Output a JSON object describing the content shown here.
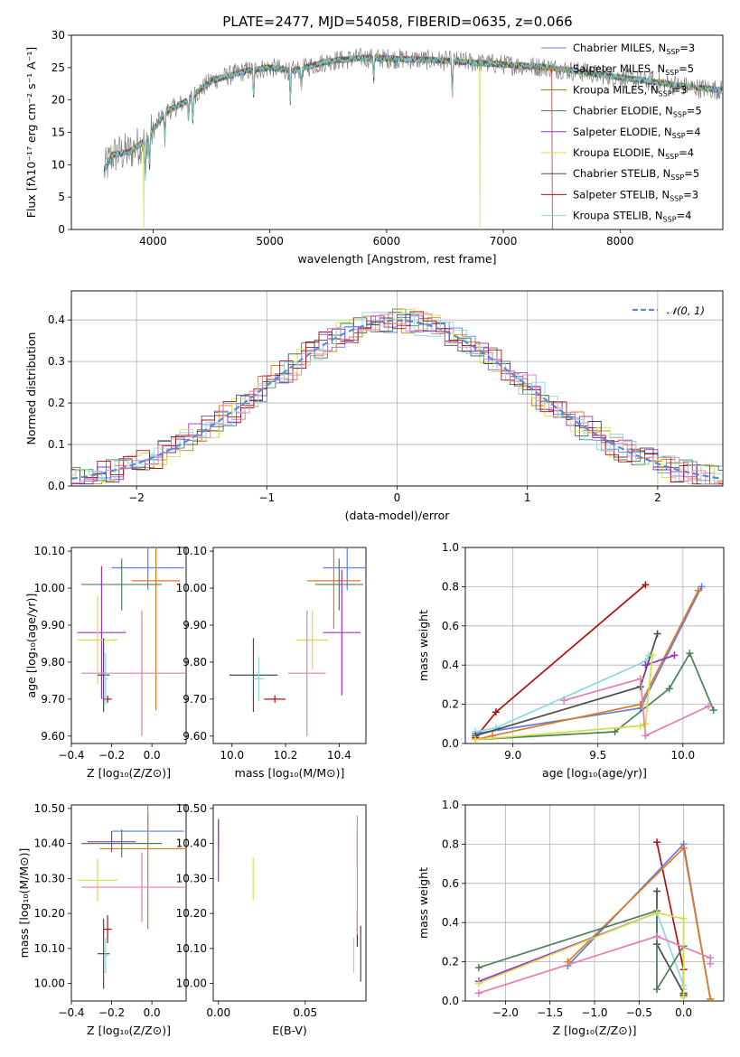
{
  "figure": {
    "title": "PLATE=2477, MJD=54058, FIBERID=0635, z=0.066"
  },
  "legend_series": [
    {
      "name": "Chabrier MILES, N_SSP=3",
      "base": "Chabrier MILES, N",
      "sub": "SSP",
      "rest": "=3",
      "color": "#5c7ee6"
    },
    {
      "name": "Salpeter MILES, N_SSP=5",
      "base": "Salpeter MILES, N",
      "sub": "SSP",
      "rest": "=5",
      "color": "#e07a1f"
    },
    {
      "name": "Kroupa MILES, N_SSP=3",
      "base": "Kroupa MILES, N",
      "sub": "SSP",
      "rest": "=3",
      "color": "#808000"
    },
    {
      "name": "Chabrier ELODIE, N_SSP=5",
      "base": "Chabrier ELODIE, N",
      "sub": "SSP",
      "rest": "=5",
      "color": "#4d8057"
    },
    {
      "name": "Salpeter ELODIE, N_SSP=4",
      "base": "Salpeter ELODIE, N",
      "sub": "SSP",
      "rest": "=4",
      "color": "#9b30c8"
    },
    {
      "name": "Kroupa ELODIE, N_SSP=4",
      "base": "Kroupa ELODIE, N",
      "sub": "SSP",
      "rest": "=4",
      "color": "#cfe04a"
    },
    {
      "name": "Chabrier STELIB, N_SSP=5",
      "base": "Chabrier STELIB, N",
      "sub": "SSP",
      "rest": "=5",
      "color": "#4a4a4a"
    },
    {
      "name": "Salpeter STELIB, N_SSP=3",
      "base": "Salpeter STELIB, N",
      "sub": "SSP",
      "rest": "=3",
      "color": "#b01010"
    },
    {
      "name": "Kroupa STELIB, N_SSP=4",
      "base": "Kroupa STELIB, N",
      "sub": "SSP",
      "rest": "=4",
      "color": "#8ad8e6"
    }
  ],
  "extra_colors": {
    "pink": "#e37fb4",
    "cyan_dark": "#5fc9d8"
  },
  "chart_data": [
    {
      "id": "spectrum",
      "type": "line",
      "title": "PLATE=2477, MJD=54058, FIBERID=0635, z=0.066",
      "xlabel": "wavelength [Angstrom, rest frame]",
      "ylabel": "Flux [fλ10⁻¹⁷ erg cm⁻² s⁻¹ A⁻¹]",
      "xlim": [
        3300,
        8880
      ],
      "ylim": [
        0,
        30
      ],
      "xticks": [
        4000,
        5000,
        6000,
        7000,
        8000
      ],
      "yticks": [
        0,
        5,
        10,
        15,
        20,
        25,
        30
      ],
      "continuum_knots": [
        [
          3580,
          9
        ],
        [
          3650,
          11.5
        ],
        [
          3800,
          12
        ],
        [
          3950,
          14
        ],
        [
          4100,
          18
        ],
        [
          4300,
          20
        ],
        [
          4500,
          23
        ],
        [
          4800,
          24.5
        ],
        [
          5000,
          25
        ],
        [
          5200,
          24.5
        ],
        [
          5500,
          26
        ],
        [
          5800,
          26.5
        ],
        [
          6200,
          26.3
        ],
        [
          6563,
          26
        ],
        [
          7000,
          25.5
        ],
        [
          7400,
          25
        ],
        [
          7800,
          24
        ],
        [
          8200,
          23
        ],
        [
          8600,
          22
        ],
        [
          8880,
          21.5
        ]
      ],
      "absorption_lines": [
        [
          3934,
          6
        ],
        [
          3969,
          5
        ],
        [
          4101,
          4
        ],
        [
          4304,
          3
        ],
        [
          4340,
          4
        ],
        [
          4861,
          4
        ],
        [
          5175,
          5
        ],
        [
          5270,
          3
        ],
        [
          5890,
          3
        ],
        [
          6563,
          5
        ]
      ],
      "dropouts": [
        {
          "series": "Kroupa ELODIE, N_SSP=4",
          "x": 3920
        },
        {
          "series": "Kroupa ELODIE, N_SSP=4",
          "x": 6800
        },
        {
          "series": "Salpeter STELIB, N_SSP=3",
          "x": 7420
        }
      ]
    },
    {
      "id": "residuals",
      "type": "histogram",
      "xlabel": "(data-model)/error",
      "ylabel": "Normed distribution",
      "xlim": [
        -2.5,
        2.5
      ],
      "ylim": [
        0,
        0.47
      ],
      "xticks": [
        -2,
        -1,
        0,
        1,
        2
      ],
      "yticks": [
        0,
        0.1,
        0.2,
        0.3,
        0.4
      ],
      "bin_width": 0.1,
      "gaussian_label": "𝒩(0, 1)",
      "gaussian_color": "#5c8ad6",
      "grid": true,
      "legend_position": "top-right"
    },
    {
      "id": "age_vs_Z",
      "type": "scatter",
      "xlabel": "Z [log₁₀(Z/Z⊙)]",
      "ylabel": "age  [log₁₀(age/yr)]",
      "xlim": [
        -0.4,
        0.17
      ],
      "ylim": [
        9.58,
        10.11
      ],
      "xticks": [
        -0.4,
        -0.2,
        0.0
      ],
      "yticks": [
        9.6,
        9.7,
        9.8,
        9.9,
        10.0,
        10.1
      ],
      "points": [
        {
          "series": "Chabrier MILES, N_SSP=3",
          "x": -0.02,
          "y": 10.055,
          "xerr": 0.18,
          "yerr": 0.06
        },
        {
          "series": "Salpeter MILES, N_SSP=5",
          "x": 0.02,
          "y": 10.02,
          "xerr": 0.12,
          "yerr": 0.35
        },
        {
          "series": "Chabrier ELODIE, N_SSP=5",
          "x": -0.15,
          "y": 10.01,
          "xerr": 0.2,
          "yerr": 0.07
        },
        {
          "series": "Salpeter ELODIE, N_SSP=4",
          "x": -0.25,
          "y": 9.88,
          "xerr": 0.12,
          "yerr": 0.18
        },
        {
          "series": "Kroupa ELODIE, N_SSP=4",
          "x": -0.27,
          "y": 9.86,
          "xerr": 0.1,
          "yerr": 0.12
        },
        {
          "series": "Chabrier STELIB, N_SSP=5",
          "x": -0.24,
          "y": 9.765,
          "xerr": 0.03,
          "yerr": 0.1
        },
        {
          "series": "Salpeter STELIB, N_SSP=3",
          "x": -0.22,
          "y": 9.7,
          "xerr": 0.02,
          "yerr": 0.01
        },
        {
          "series": "Kroupa STELIB, N_SSP=4",
          "x": -0.23,
          "y": 9.755,
          "xerr": 0.01,
          "yerr": 0.07
        },
        {
          "series": "pink",
          "x": -0.05,
          "y": 9.77,
          "xerr": 0.3,
          "yerr": 0.17
        }
      ]
    },
    {
      "id": "age_vs_mass",
      "type": "scatter",
      "xlabel": "mass [log₁₀(M/M⊙)]",
      "ylabel": "",
      "xlim": [
        9.93,
        10.5
      ],
      "ylim": [
        9.58,
        10.11
      ],
      "xticks": [
        10.0,
        10.2,
        10.4
      ],
      "yticks": [
        9.6,
        9.7,
        9.8,
        9.9,
        10.0,
        10.1
      ],
      "points": [
        {
          "series": "Chabrier MILES, N_SSP=3",
          "x": 10.43,
          "y": 10.055,
          "xerr": 0.09,
          "yerr": 0.06
        },
        {
          "series": "Salpeter MILES, N_SSP=5",
          "x": 10.38,
          "y": 10.02,
          "xerr": 0.1,
          "yerr": 0.13
        },
        {
          "series": "Chabrier ELODIE, N_SSP=5",
          "x": 10.4,
          "y": 10.01,
          "xerr": 0.09,
          "yerr": 0.07
        },
        {
          "series": "Salpeter ELODIE, N_SSP=4",
          "x": 10.41,
          "y": 9.88,
          "xerr": 0.07,
          "yerr": 0.17
        },
        {
          "series": "Kroupa ELODIE, N_SSP=4",
          "x": 10.3,
          "y": 9.86,
          "xerr": 0.06,
          "yerr": 0.08
        },
        {
          "series": "Chabrier STELIB, N_SSP=5",
          "x": 10.08,
          "y": 9.765,
          "xerr": 0.09,
          "yerr": 0.1
        },
        {
          "series": "Salpeter STELIB, N_SSP=3",
          "x": 10.16,
          "y": 9.7,
          "xerr": 0.04,
          "yerr": 0.01
        },
        {
          "series": "Kroupa STELIB, N_SSP=4",
          "x": 10.1,
          "y": 9.755,
          "xerr": 0.02,
          "yerr": 0.06
        },
        {
          "series": "pink",
          "x": 10.28,
          "y": 9.77,
          "xerr": 0.07,
          "yerr": 0.17
        }
      ]
    },
    {
      "id": "weight_vs_age",
      "type": "line",
      "xlabel": "age  [log₁₀(age/yr)]",
      "ylabel": "mass weight",
      "xlim": [
        8.72,
        10.24
      ],
      "ylim": [
        0,
        1
      ],
      "xticks": [
        9.0,
        9.5,
        10.0
      ],
      "yticks": [
        0.0,
        0.2,
        0.4,
        0.6,
        0.8,
        1.0
      ],
      "grid": true,
      "series": [
        {
          "series": "Salpeter STELIB, N_SSP=3",
          "x": [
            8.78,
            8.9,
            9.78
          ],
          "y": [
            0.03,
            0.16,
            0.81
          ]
        },
        {
          "series": "Chabrier MILES, N_SSP=3",
          "x": [
            8.78,
            9.75,
            10.11
          ],
          "y": [
            0.05,
            0.18,
            0.8
          ]
        },
        {
          "series": "Salpeter MILES, N_SSP=5",
          "x": [
            8.78,
            8.88,
            9.75,
            10.09
          ],
          "y": [
            0.02,
            0.04,
            0.2,
            0.78
          ]
        },
        {
          "series": "Kroupa STELIB, N_SSP=4",
          "x": [
            8.78,
            8.9,
            9.78,
            9.8
          ],
          "y": [
            0.06,
            0.08,
            0.42,
            0.45
          ]
        },
        {
          "series": "Chabrier STELIB, N_SSP=5",
          "x": [
            8.78,
            9.75,
            9.85
          ],
          "y": [
            0.04,
            0.29,
            0.56
          ]
        },
        {
          "series": "Chabrier ELODIE, N_SSP=5",
          "x": [
            8.78,
            9.6,
            9.92,
            10.04,
            10.18
          ],
          "y": [
            0.02,
            0.06,
            0.28,
            0.46,
            0.17
          ]
        },
        {
          "series": "Salpeter ELODIE, N_SSP=4",
          "x": [
            9.78,
            9.95
          ],
          "y": [
            0.4,
            0.45
          ]
        },
        {
          "series": "Kroupa ELODIE, N_SSP=4",
          "x": [
            8.78,
            9.75,
            9.78,
            9.82
          ],
          "y": [
            0.02,
            0.09,
            0.1,
            0.45
          ]
        },
        {
          "series": "pink",
          "x": [
            9.3,
            9.75,
            9.78,
            10.15
          ],
          "y": [
            0.22,
            0.33,
            0.04,
            0.19
          ]
        }
      ]
    },
    {
      "id": "mass_vs_Z",
      "type": "scatter",
      "xlabel": "Z [log₁₀(Z/Z⊙)]",
      "ylabel": "mass [log₁₀(M/M⊙)]",
      "xlim": [
        -0.4,
        0.17
      ],
      "ylim": [
        9.95,
        10.51
      ],
      "xticks": [
        -0.4,
        -0.2,
        0.0
      ],
      "yticks": [
        10.0,
        10.1,
        10.2,
        10.3,
        10.4,
        10.5
      ],
      "points": [
        {
          "series": "Chabrier MILES, N_SSP=3",
          "x": -0.02,
          "y": 10.435,
          "xerr": 0.18,
          "yerr": 0.05
        },
        {
          "series": "Salpeter MILES, N_SSP=5",
          "x": -0.02,
          "y": 10.385,
          "xerr": 0.24,
          "yerr": 0.23
        },
        {
          "series": "Chabrier ELODIE, N_SSP=5",
          "x": -0.15,
          "y": 10.4,
          "xerr": 0.2,
          "yerr": 0.04
        },
        {
          "series": "Salpeter ELODIE, N_SSP=4",
          "x": -0.2,
          "y": 10.405,
          "xerr": 0.12,
          "yerr": 0.03
        },
        {
          "series": "Kroupa ELODIE, N_SSP=4",
          "x": -0.27,
          "y": 10.295,
          "xerr": 0.1,
          "yerr": 0.06
        },
        {
          "series": "Chabrier STELIB, N_SSP=5",
          "x": -0.24,
          "y": 10.085,
          "xerr": 0.03,
          "yerr": 0.1
        },
        {
          "series": "Salpeter STELIB, N_SSP=3",
          "x": -0.22,
          "y": 10.155,
          "xerr": 0.02,
          "yerr": 0.04
        },
        {
          "series": "Kroupa STELIB, N_SSP=4",
          "x": -0.23,
          "y": 10.08,
          "xerr": 0.01,
          "yerr": 0.05
        },
        {
          "series": "pink",
          "x": -0.05,
          "y": 10.275,
          "xerr": 0.3,
          "yerr": 0.1
        }
      ]
    },
    {
      "id": "mass_vs_ebv",
      "type": "scatter",
      "xlabel": "E(B-V)",
      "ylabel": "",
      "xlim": [
        -0.003,
        0.085
      ],
      "ylim": [
        9.95,
        10.51
      ],
      "xticks": [
        0.0,
        0.05
      ],
      "yticks": [
        10.0,
        10.1,
        10.2,
        10.3,
        10.4,
        10.5
      ],
      "points": [
        {
          "series": "Chabrier MILES, N_SSP=3",
          "x": 0.0,
          "y": 10.44,
          "xerr": 0.0,
          "yerr": 0.03
        },
        {
          "series": "Salpeter MILES, N_SSP=5",
          "x": 0.08,
          "y": 10.39,
          "xerr": 0.0,
          "yerr": 0.05
        },
        {
          "series": "Chabrier ELODIE, N_SSP=5",
          "x": 0.0,
          "y": 10.4,
          "xerr": 0.0,
          "yerr": 0.02
        },
        {
          "series": "Salpeter ELODIE, N_SSP=4",
          "x": 0.0,
          "y": 10.38,
          "xerr": 0.0,
          "yerr": 0.09
        },
        {
          "series": "Kroupa ELODIE, N_SSP=4",
          "x": 0.02,
          "y": 10.3,
          "xerr": 0.0,
          "yerr": 0.06
        },
        {
          "series": "Chabrier STELIB, N_SSP=5",
          "x": 0.082,
          "y": 10.085,
          "xerr": 0.0,
          "yerr": 0.08
        },
        {
          "series": "Salpeter STELIB, N_SSP=3",
          "x": 0.08,
          "y": 10.155,
          "xerr": 0.0,
          "yerr": 0.05
        },
        {
          "series": "Kroupa STELIB, N_SSP=4",
          "x": 0.078,
          "y": 10.08,
          "xerr": 0.0,
          "yerr": 0.05
        },
        {
          "series": "pink",
          "x": 0.08,
          "y": 10.31,
          "xerr": 0.0,
          "yerr": 0.17
        }
      ]
    },
    {
      "id": "weight_vs_Z",
      "type": "line",
      "xlabel": "Z [log₁₀(Z/Z⊙)]",
      "ylabel": "mass weight",
      "xlim": [
        -2.45,
        0.45
      ],
      "ylim": [
        0,
        1
      ],
      "xticks": [
        -2.0,
        -1.5,
        -1.0,
        -0.5,
        0.0
      ],
      "yticks": [
        0.0,
        0.2,
        0.4,
        0.6,
        0.8,
        1.0
      ],
      "grid": true,
      "series": [
        {
          "series": "Salpeter STELIB, N_SSP=3",
          "x": [
            -0.3,
            0.0,
            0.0
          ],
          "y": [
            0.81,
            0.16,
            0.03
          ]
        },
        {
          "series": "Chabrier MILES, N_SSP=3",
          "x": [
            -1.3,
            0.0,
            0.3
          ],
          "y": [
            0.18,
            0.8,
            0.01
          ]
        },
        {
          "series": "Salpeter MILES, N_SSP=5",
          "x": [
            -1.3,
            0.0,
            0.3
          ],
          "y": [
            0.2,
            0.78,
            0.01
          ]
        },
        {
          "series": "Kroupa STELIB, N_SSP=4",
          "x": [
            -0.3,
            0.0,
            0.0
          ],
          "y": [
            0.45,
            0.08,
            0.06
          ]
        },
        {
          "series": "Chabrier STELIB, N_SSP=5",
          "x": [
            -0.3,
            -0.3,
            0.0,
            0.0
          ],
          "y": [
            0.56,
            0.29,
            0.04,
            0.03
          ]
        },
        {
          "series": "Chabrier ELODIE, N_SSP=5",
          "x": [
            -2.3,
            -0.3,
            -0.3,
            0.0,
            0.0
          ],
          "y": [
            0.17,
            0.46,
            0.06,
            0.28,
            0.02
          ]
        },
        {
          "series": "Salpeter ELODIE, N_SSP=4",
          "x": [
            -2.3,
            -0.3
          ],
          "y": [
            0.1,
            0.45
          ]
        },
        {
          "series": "Kroupa ELODIE, N_SSP=4",
          "x": [
            -2.3,
            -0.3,
            0.0,
            0.0
          ],
          "y": [
            0.09,
            0.45,
            0.42,
            0.02
          ]
        },
        {
          "series": "pink",
          "x": [
            -2.3,
            -0.3,
            0.3,
            0.3
          ],
          "y": [
            0.04,
            0.33,
            0.22,
            0.19
          ]
        }
      ]
    }
  ]
}
